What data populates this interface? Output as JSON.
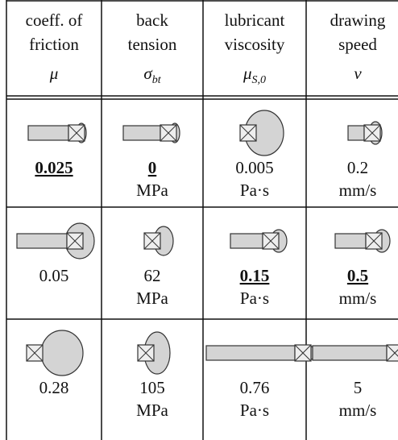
{
  "table": {
    "header": [
      {
        "lines": [
          "coeff. of",
          "friction"
        ],
        "symbol": {
          "base": "μ"
        }
      },
      {
        "lines": [
          "back",
          "tension"
        ],
        "symbol": {
          "base": "σ",
          "sub": "bt"
        }
      },
      {
        "lines": [
          "lubricant",
          "viscosity"
        ],
        "symbol": {
          "base": "μ",
          "sub": "S,0"
        }
      },
      {
        "lines": [
          "drawing",
          "speed"
        ],
        "symbol": {
          "base": "v"
        }
      }
    ],
    "rows": [
      [
        {
          "value": "0.025",
          "selected": true
        },
        {
          "value": "0",
          "unit": "MPa",
          "selected": true
        },
        {
          "value": "0.005",
          "unit": "Pa·s"
        },
        {
          "value": "0.2",
          "unit": "mm/s"
        }
      ],
      [
        {
          "value": "0.05"
        },
        {
          "value": "62",
          "unit": "MPa"
        },
        {
          "value": "0.15",
          "unit": "Pa·s",
          "selected": true
        },
        {
          "value": "0.5",
          "unit": "mm/s",
          "selected": true
        }
      ],
      [
        {
          "value": "0.28"
        },
        {
          "value": "105",
          "unit": "MPa"
        },
        {
          "value": "0.76",
          "unit": "Pa·s"
        },
        {
          "value": "5",
          "unit": "mm/s"
        }
      ]
    ]
  }
}
